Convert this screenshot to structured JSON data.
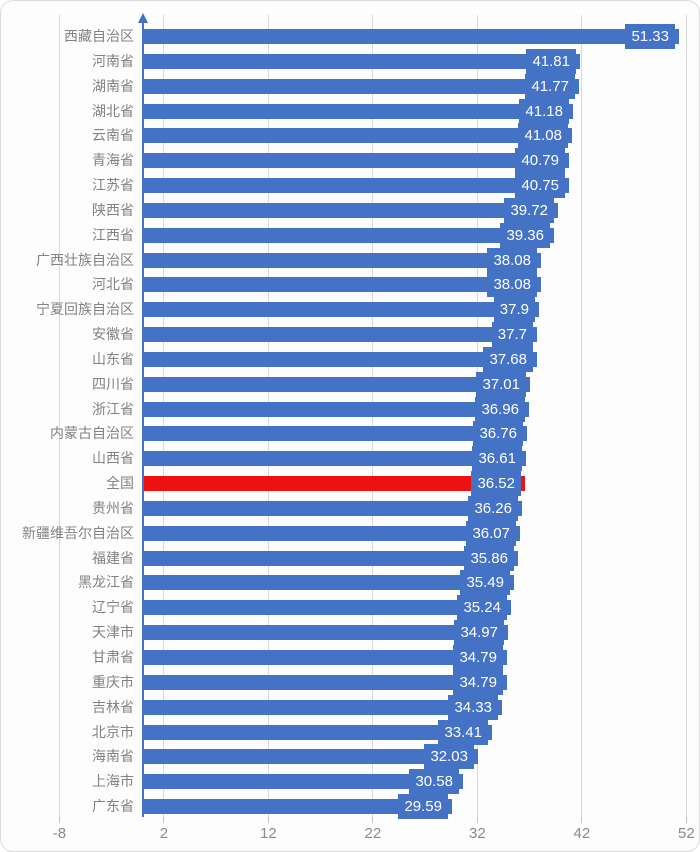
{
  "chart_data": {
    "type": "bar",
    "orientation": "horizontal",
    "title": "",
    "xlabel": "",
    "ylabel": "",
    "categories": [
      "西藏自治区",
      "河南省",
      "湖南省",
      "湖北省",
      "云南省",
      "青海省",
      "江苏省",
      "陕西省",
      "江西省",
      "广西壮族自治区",
      "河北省",
      "宁夏回族自治区",
      "安徽省",
      "山东省",
      "四川省",
      "浙江省",
      "内蒙古自治区",
      "山西省",
      "全国",
      "贵州省",
      "新疆维吾尔自治区",
      "福建省",
      "黑龙江省",
      "辽宁省",
      "天津市",
      "甘肃省",
      "重庆市",
      "吉林省",
      "北京市",
      "海南省",
      "上海市",
      "广东省"
    ],
    "values": [
      51.33,
      41.81,
      41.77,
      41.18,
      41.08,
      40.79,
      40.75,
      39.72,
      39.36,
      38.08,
      38.08,
      37.9,
      37.7,
      37.68,
      37.01,
      36.96,
      36.76,
      36.61,
      36.52,
      36.26,
      36.07,
      35.86,
      35.49,
      35.24,
      34.97,
      34.79,
      34.79,
      34.33,
      33.41,
      32.03,
      30.58,
      29.59
    ],
    "highlight_category": "全国",
    "highlight_index": 18,
    "x_ticks": [
      -8,
      2,
      12,
      22,
      32,
      42,
      52
    ],
    "xlim": [
      -8,
      52
    ],
    "grid": true,
    "legend": false,
    "data_labels_position": "inside-end",
    "colors": {
      "bar": "#4472c4",
      "highlight_bar": "#ee1111",
      "value_label_bg": "#4472c4",
      "value_label_text": "#ffffff",
      "category_text": "#828282",
      "axis_tick_text": "#8a8a8a",
      "gridline": "#d9d9d9",
      "axis_line": "#4472c4"
    }
  }
}
